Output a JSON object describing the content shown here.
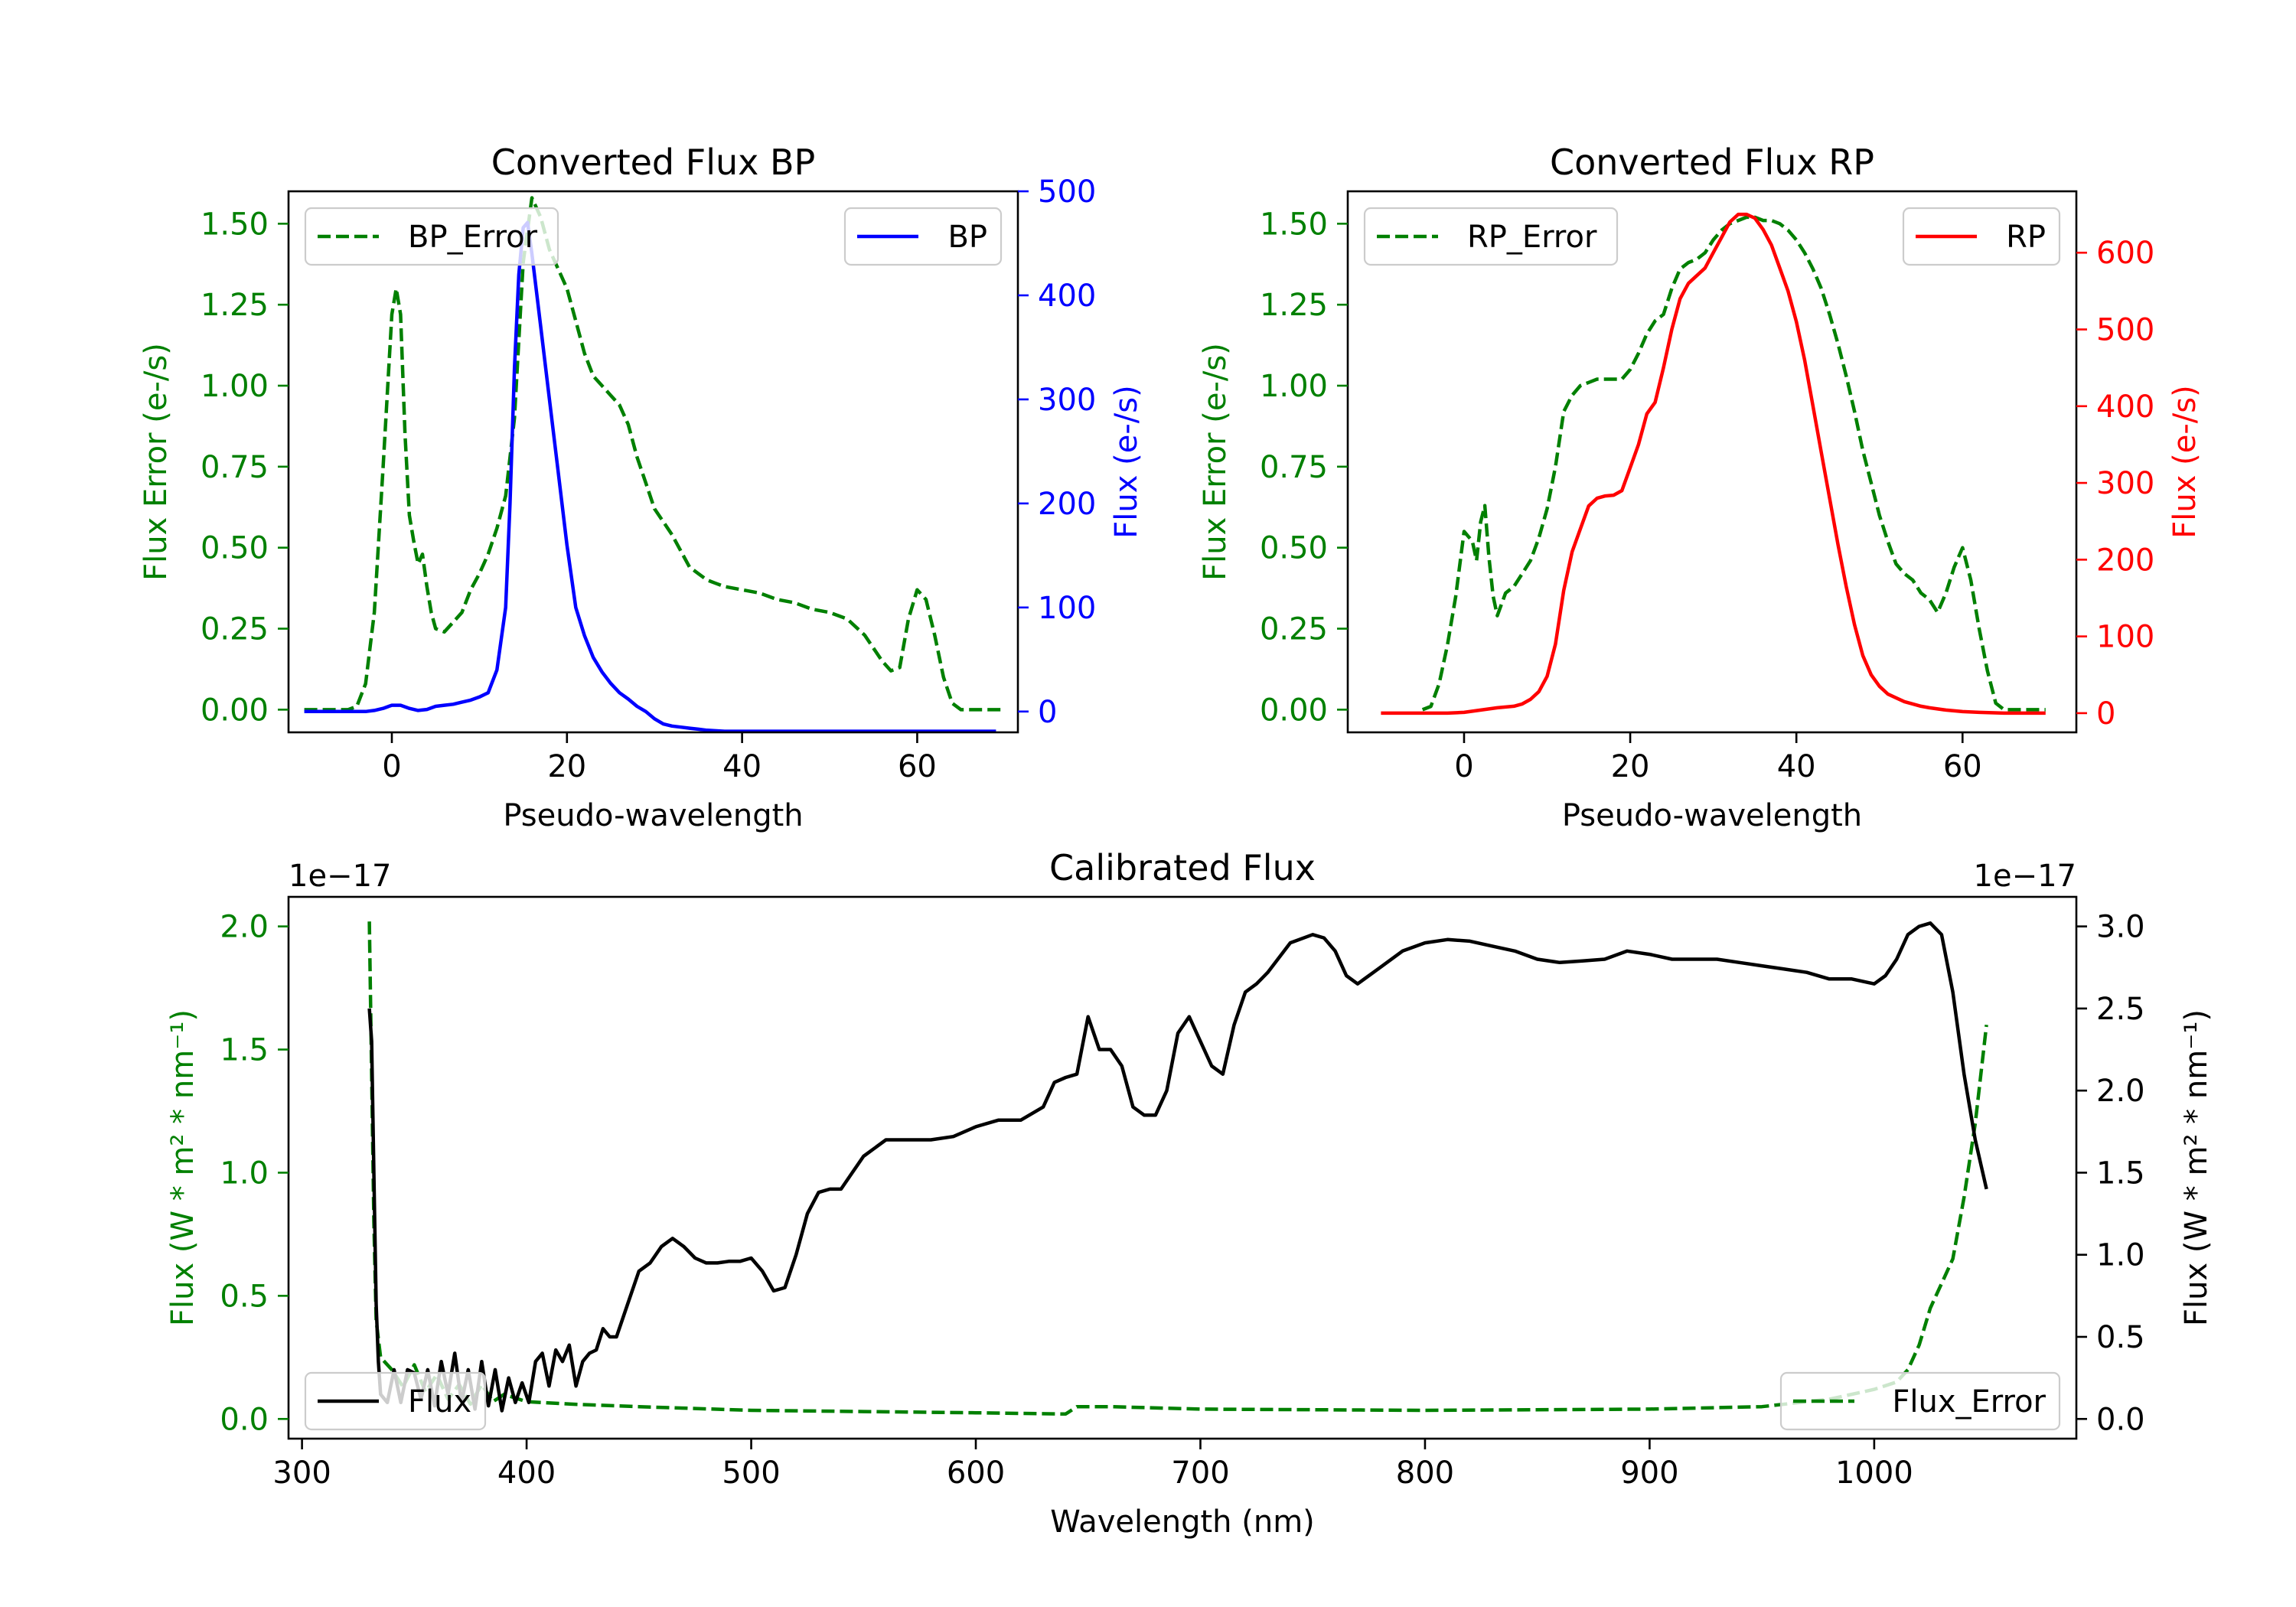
{
  "colors": {
    "error": "#008000",
    "bp": "#0000ff",
    "rp": "#ff0000",
    "flux": "#000000",
    "axis": "#000000"
  },
  "chart_data": [
    {
      "id": "bp",
      "type": "line",
      "title": "Converted Flux BP",
      "xlabel": "Pseudo-wavelength",
      "ylabel_left": "Flux Error (e-/s)",
      "ylabel_right": "Flux (e-/s)",
      "xlim": [
        -11.8,
        71.5
      ],
      "ylim_left": [
        -0.07,
        1.6
      ],
      "ylim_right": [
        -20,
        500
      ],
      "x_ticks": [
        0,
        20,
        40,
        60
      ],
      "y_ticks_left": [
        0.0,
        0.25,
        0.5,
        0.75,
        1.0,
        1.25,
        1.5
      ],
      "y_ticks_right": [
        0,
        100,
        200,
        300,
        400,
        500
      ],
      "legend_left": "BP_Error",
      "legend_right": "BP",
      "series": [
        {
          "name": "BP_Error",
          "axis": "left",
          "style": "dashed",
          "x": [
            -10,
            -5,
            -4,
            -3,
            -2,
            -1,
            0,
            0.5,
            1,
            1.5,
            2,
            2.5,
            3,
            3.5,
            4,
            4.5,
            5,
            6,
            7,
            8,
            9,
            10,
            11,
            12,
            13,
            14,
            15,
            16,
            17,
            18,
            19,
            20,
            21,
            22,
            23,
            24,
            25,
            26,
            27,
            28,
            29,
            30,
            31,
            32,
            33,
            34,
            35,
            36,
            37,
            38,
            40,
            42,
            44,
            46,
            48,
            50,
            52,
            54,
            55,
            56,
            57,
            58,
            59,
            60,
            61,
            62,
            63,
            64,
            65,
            70
          ],
          "values": [
            0,
            0,
            0.01,
            0.08,
            0.3,
            0.75,
            1.22,
            1.3,
            1.22,
            0.85,
            0.6,
            0.52,
            0.45,
            0.48,
            0.38,
            0.3,
            0.25,
            0.24,
            0.27,
            0.3,
            0.37,
            0.42,
            0.48,
            0.56,
            0.66,
            0.9,
            1.38,
            1.58,
            1.52,
            1.42,
            1.36,
            1.3,
            1.2,
            1.1,
            1.03,
            1.0,
            0.97,
            0.94,
            0.88,
            0.78,
            0.7,
            0.62,
            0.58,
            0.54,
            0.49,
            0.44,
            0.42,
            0.4,
            0.39,
            0.38,
            0.37,
            0.36,
            0.34,
            0.33,
            0.31,
            0.3,
            0.28,
            0.23,
            0.19,
            0.15,
            0.12,
            0.13,
            0.28,
            0.37,
            0.34,
            0.23,
            0.1,
            0.02,
            0,
            0
          ]
        },
        {
          "name": "BP",
          "axis": "right",
          "style": "solid",
          "x": [
            -10,
            -5,
            -3,
            -2,
            -1,
            0,
            1,
            2,
            3,
            4,
            5,
            6,
            7,
            8,
            9,
            10,
            11,
            12,
            13,
            13.5,
            14,
            14.5,
            15,
            15.5,
            16,
            17,
            18,
            19,
            20,
            21,
            22,
            23,
            24,
            25,
            26,
            27,
            28,
            29,
            30,
            31,
            32,
            33,
            34,
            35,
            36,
            38,
            40,
            45,
            50,
            55,
            60,
            65,
            69
          ],
          "values": [
            0,
            0,
            0,
            1,
            3,
            6,
            6,
            3,
            1,
            2,
            5,
            6,
            7,
            9,
            11,
            14,
            18,
            40,
            100,
            200,
            330,
            420,
            465,
            470,
            440,
            370,
            300,
            230,
            160,
            100,
            73,
            52,
            38,
            27,
            18,
            12,
            5,
            0,
            -7,
            -12,
            -14,
            -15,
            -16,
            -17,
            -18,
            -19,
            -19,
            -19,
            -19,
            -19,
            -19,
            -19,
            -19
          ]
        }
      ]
    },
    {
      "id": "rp",
      "type": "line",
      "title": "Converted Flux RP",
      "xlabel": "Pseudo-wavelength",
      "ylabel_left": "Flux Error (e-/s)",
      "ylabel_right": "Flux (e-/s)",
      "xlim": [
        -14,
        73.7
      ],
      "ylim_left": [
        -0.07,
        1.6
      ],
      "ylim_right": [
        -25,
        680
      ],
      "x_ticks": [
        0,
        20,
        40,
        60
      ],
      "y_ticks_left": [
        0.0,
        0.25,
        0.5,
        0.75,
        1.0,
        1.25,
        1.5
      ],
      "y_ticks_right": [
        0,
        100,
        200,
        300,
        400,
        500,
        600
      ],
      "legend_left": "RP_Error",
      "legend_right": "RP",
      "series": [
        {
          "name": "RP_Error",
          "axis": "left",
          "style": "dashed",
          "x": [
            -5,
            -4,
            -3,
            -2,
            -1,
            0,
            1,
            1.5,
            2,
            2.5,
            3,
            3.5,
            4,
            5,
            6,
            7,
            8,
            9,
            10,
            11,
            12,
            13,
            14,
            15,
            16,
            17,
            18,
            19,
            20,
            21,
            22,
            23,
            24,
            25,
            26,
            27,
            28,
            29,
            30,
            31,
            32,
            33,
            34,
            35,
            36,
            37,
            38,
            39,
            40,
            41,
            42,
            43,
            44,
            45,
            46,
            47,
            48,
            49,
            50,
            51,
            52,
            53,
            54,
            55,
            56,
            57,
            58,
            59,
            60,
            61,
            62,
            63,
            64,
            65,
            70
          ],
          "values": [
            0,
            0.01,
            0.08,
            0.2,
            0.35,
            0.55,
            0.52,
            0.46,
            0.58,
            0.63,
            0.47,
            0.35,
            0.29,
            0.36,
            0.38,
            0.42,
            0.46,
            0.53,
            0.62,
            0.75,
            0.92,
            0.97,
            1.0,
            1.01,
            1.02,
            1.02,
            1.02,
            1.02,
            1.05,
            1.1,
            1.16,
            1.2,
            1.22,
            1.3,
            1.36,
            1.38,
            1.39,
            1.41,
            1.45,
            1.48,
            1.5,
            1.51,
            1.52,
            1.52,
            1.51,
            1.51,
            1.5,
            1.48,
            1.45,
            1.41,
            1.36,
            1.3,
            1.22,
            1.13,
            1.03,
            0.92,
            0.8,
            0.7,
            0.6,
            0.52,
            0.45,
            0.42,
            0.4,
            0.36,
            0.34,
            0.3,
            0.36,
            0.44,
            0.5,
            0.4,
            0.25,
            0.12,
            0.02,
            0,
            0
          ]
        },
        {
          "name": "RP",
          "axis": "right",
          "style": "solid",
          "x": [
            -10,
            -5,
            -2,
            0,
            2,
            4,
            6,
            7,
            8,
            9,
            10,
            11,
            12,
            13,
            14,
            15,
            16,
            17,
            18,
            19,
            20,
            21,
            22,
            23,
            24,
            25,
            26,
            27,
            28,
            29,
            30,
            31,
            32,
            33,
            34,
            35,
            36,
            37,
            38,
            39,
            40,
            41,
            42,
            43,
            44,
            45,
            46,
            47,
            48,
            49,
            50,
            51,
            52,
            53,
            54,
            55,
            56,
            58,
            60,
            62,
            65,
            70
          ],
          "values": [
            0,
            0,
            0,
            1,
            4,
            7,
            9,
            12,
            18,
            28,
            48,
            90,
            160,
            210,
            240,
            270,
            280,
            283,
            284,
            290,
            320,
            350,
            390,
            405,
            450,
            500,
            540,
            560,
            570,
            580,
            600,
            620,
            640,
            650,
            650,
            645,
            630,
            610,
            580,
            550,
            510,
            460,
            400,
            340,
            280,
            220,
            165,
            115,
            75,
            50,
            35,
            25,
            20,
            15,
            12,
            9,
            7,
            4,
            2,
            1,
            0,
            0
          ]
        }
      ]
    },
    {
      "id": "calibrated",
      "type": "line",
      "title": "Calibrated Flux",
      "xlabel": "Wavelength (nm)",
      "ylabel_left": "Flux (W * m² * nm⁻¹)",
      "ylabel_right": "Flux (W * m² * nm⁻¹)",
      "offset_left": "1e−17",
      "offset_right": "1e−17",
      "xlim": [
        294,
        1090
      ],
      "ylim_left": [
        -0.08,
        2.12
      ],
      "ylim_right": [
        -0.12,
        3.18
      ],
      "x_ticks": [
        300,
        400,
        500,
        600,
        700,
        800,
        900,
        1000
      ],
      "y_ticks_left": [
        0.0,
        0.5,
        1.0,
        1.5,
        2.0
      ],
      "y_ticks_right": [
        0.0,
        0.5,
        1.0,
        1.5,
        2.0,
        2.5,
        3.0
      ],
      "legend_left": "Flux",
      "legend_right": "Flux_Error",
      "series": [
        {
          "name": "Flux_Error",
          "axis": "left",
          "style": "dashed",
          "x": [
            330,
            331,
            332,
            333,
            335,
            340,
            345,
            350,
            355,
            360,
            365,
            370,
            375,
            380,
            385,
            390,
            400,
            420,
            450,
            500,
            550,
            600,
            640,
            645,
            660,
            700,
            800,
            900,
            950,
            980,
            1000,
            1010,
            1015,
            1020,
            1025,
            1030,
            1035,
            1040,
            1045,
            1050
          ],
          "values": [
            2.02,
            1.4,
            0.8,
            0.4,
            0.25,
            0.2,
            0.13,
            0.22,
            0.11,
            0.18,
            0.08,
            0.14,
            0.06,
            0.14,
            0.07,
            0.1,
            0.07,
            0.06,
            0.05,
            0.035,
            0.03,
            0.025,
            0.02,
            0.05,
            0.05,
            0.04,
            0.035,
            0.04,
            0.05,
            0.08,
            0.12,
            0.15,
            0.2,
            0.3,
            0.45,
            0.55,
            0.65,
            0.9,
            1.2,
            1.6
          ]
        },
        {
          "name": "Flux",
          "axis": "right",
          "style": "solid",
          "x": [
            330,
            331,
            332,
            333,
            334,
            335,
            338,
            341,
            344,
            347,
            350,
            353,
            356,
            359,
            362,
            365,
            368,
            371,
            374,
            377,
            380,
            383,
            386,
            389,
            392,
            395,
            398,
            401,
            404,
            407,
            410,
            413,
            416,
            419,
            422,
            425,
            428,
            431,
            434,
            437,
            440,
            445,
            450,
            455,
            460,
            465,
            470,
            475,
            480,
            485,
            490,
            495,
            500,
            505,
            510,
            515,
            520,
            525,
            530,
            535,
            540,
            545,
            550,
            560,
            570,
            580,
            590,
            600,
            610,
            620,
            630,
            635,
            640,
            645,
            650,
            655,
            660,
            665,
            670,
            675,
            680,
            685,
            690,
            695,
            700,
            705,
            710,
            715,
            720,
            725,
            730,
            740,
            750,
            755,
            760,
            765,
            770,
            775,
            780,
            790,
            800,
            810,
            820,
            830,
            840,
            850,
            860,
            870,
            880,
            890,
            900,
            910,
            920,
            930,
            940,
            950,
            960,
            970,
            980,
            990,
            1000,
            1005,
            1010,
            1015,
            1020,
            1025,
            1030,
            1035,
            1040,
            1045,
            1050
          ],
          "values": [
            2.5,
            2.3,
            1.5,
            0.7,
            0.35,
            0.15,
            0.1,
            0.3,
            0.1,
            0.3,
            0.28,
            0.12,
            0.3,
            0.08,
            0.35,
            0.15,
            0.4,
            0.1,
            0.3,
            0.06,
            0.35,
            0.08,
            0.3,
            0.05,
            0.25,
            0.1,
            0.22,
            0.1,
            0.35,
            0.4,
            0.2,
            0.42,
            0.35,
            0.45,
            0.2,
            0.35,
            0.4,
            0.42,
            0.55,
            0.5,
            0.5,
            0.7,
            0.9,
            0.95,
            1.05,
            1.1,
            1.05,
            0.98,
            0.95,
            0.95,
            0.96,
            0.96,
            0.98,
            0.9,
            0.78,
            0.8,
            1.0,
            1.25,
            1.38,
            1.4,
            1.4,
            1.5,
            1.6,
            1.7,
            1.7,
            1.7,
            1.72,
            1.78,
            1.82,
            1.82,
            1.9,
            2.05,
            2.08,
            2.1,
            2.45,
            2.25,
            2.25,
            2.15,
            1.9,
            1.85,
            1.85,
            2.0,
            2.35,
            2.45,
            2.3,
            2.15,
            2.1,
            2.4,
            2.6,
            2.65,
            2.72,
            2.9,
            2.95,
            2.93,
            2.85,
            2.7,
            2.65,
            2.7,
            2.75,
            2.85,
            2.9,
            2.92,
            2.91,
            2.88,
            2.85,
            2.8,
            2.78,
            2.79,
            2.8,
            2.85,
            2.83,
            2.8,
            2.8,
            2.8,
            2.78,
            2.76,
            2.74,
            2.72,
            2.68,
            2.68,
            2.65,
            2.7,
            2.8,
            2.95,
            3.0,
            3.02,
            2.95,
            2.6,
            2.1,
            1.7,
            1.4
          ]
        }
      ]
    }
  ]
}
